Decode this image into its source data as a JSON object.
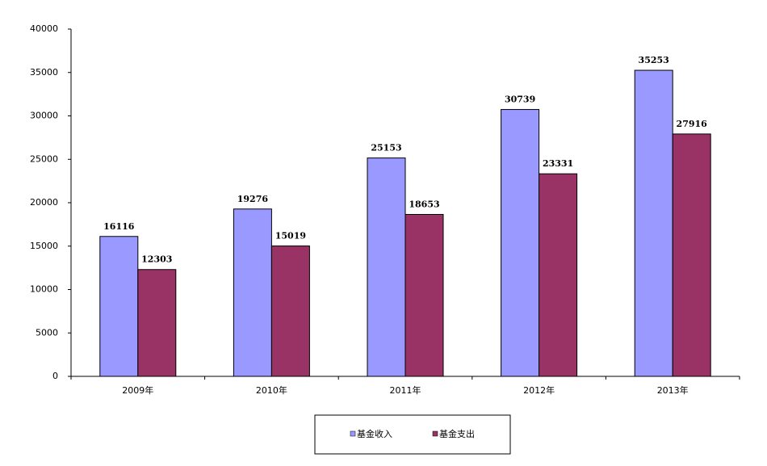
{
  "chart_data": {
    "type": "bar",
    "categories": [
      "2009年",
      "2010年",
      "2011年",
      "2012年",
      "2013年"
    ],
    "series": [
      {
        "name": "基金收入",
        "color": "#9999ff",
        "values": [
          16116,
          19276,
          25153,
          30739,
          35253
        ]
      },
      {
        "name": "基金支出",
        "color": "#993366",
        "values": [
          12303,
          15019,
          18653,
          23331,
          27916
        ]
      }
    ],
    "ylim": [
      0,
      40000
    ],
    "yticks": [
      0,
      5000,
      10000,
      15000,
      20000,
      25000,
      30000,
      35000,
      40000
    ],
    "legend": "bottom"
  }
}
